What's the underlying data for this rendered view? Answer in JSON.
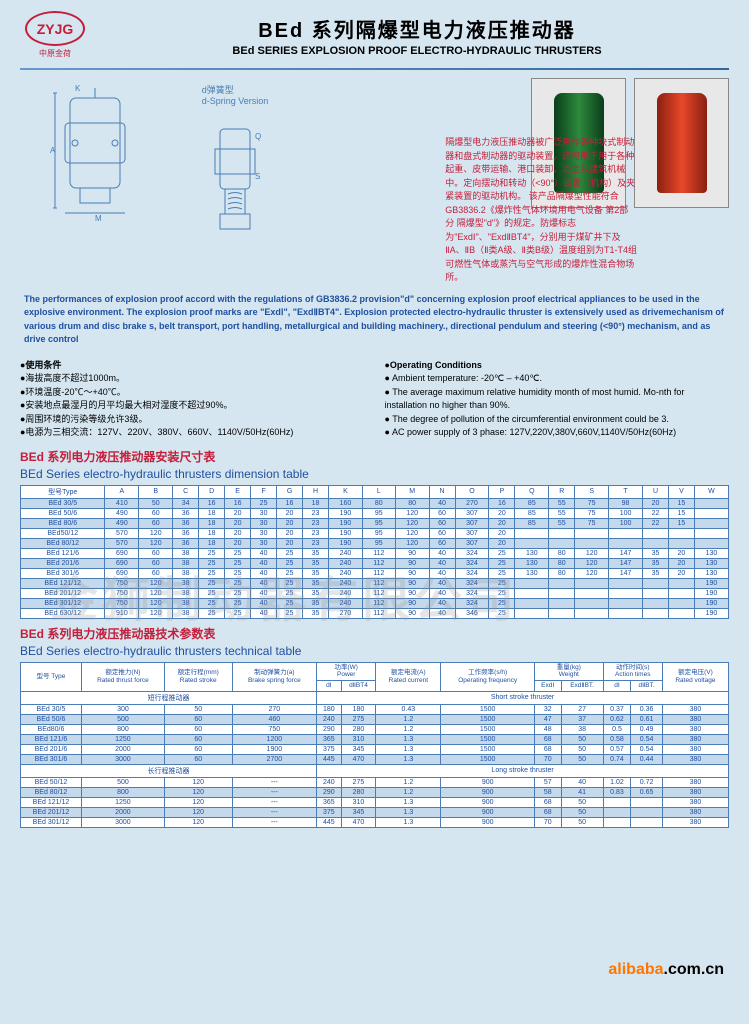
{
  "logo": {
    "text": "ZYJG",
    "sub": "中原金荷"
  },
  "title": {
    "cn": "BEd 系列隔爆型电力液压推动器",
    "en": "BEd SERIES EXPLOSION PROOF ELECTRO-HYDRAULIC THRUSTERS"
  },
  "diagram_label": {
    "cn": "d弹簧型",
    "en": "d-Spring Version"
  },
  "cn_description": "隔爆型电力液压推动器被广泛用作各种块式制动器和盘式制动器的驱动装置。还可用于用于各种起重、皮带运输、港口装卸、冶金及建筑机械中。定向摆动和转动（<90°）装置（机构）及夹紧装置的驱动机构。\n该产品隔爆型性能符合 GB3836.2《爆炸性气体环境用电气设备 第2部分 隔爆型\"d\"》的规定。防爆标志为\"ExdⅠ\"、\"ExdⅡBT4\"，分别用于煤矿井下及ⅡA、ⅡB（Ⅱ类A级、Ⅱ类B级）温度组别为T1-T4组可燃性气体或蒸汽与空气形成的爆炸性混合物场所。",
  "en_description": "The performances of explosion proof accord with the regulations of GB3836.2 provision\"d\" concerning explosion proof electrical appliances to be used in the explosive environment. The explosion proof marks are \"ExdⅠ\", \"ExdⅡBT4\". Explosion protected electro-hydraulic thruster is extensively used as drivemechanism of various drum and disc brake s, belt transport, port handling, metallurgical and building machinery., directional pendulum and steering (<90°) mechanism, and as drive control",
  "conditions_cn": {
    "head": "●使用条件",
    "lines": [
      "●海拔高度不超过1000m。",
      "●环境温度-20℃～+40℃。",
      "●安装地点最湿月的月平均最大相对湿度不超过90%。",
      "●周围环境的污染等级允许3级。",
      "●电源为三相交流：127V、220V、380V、660V、1140V/50Hz(60Hz)"
    ]
  },
  "conditions_en": {
    "head": "●Operating Conditions",
    "lines": [
      "● Ambient temperature: -20℃ – +40℃.",
      "● The average maximum relative humidity month of most humid. Mo-nth for installation no higher than 90%.",
      "● The degree of pollution of the circumferential environment could be 3.",
      "● AC power supply of 3 phase: 127V,220V,380V,660V,1140V/50Hz(60Hz)"
    ]
  },
  "dim_table": {
    "title_cn": "BEd 系列电力液压推动器安装尺寸表",
    "title_en": "BEd Series electro-hydraulic thrusters dimension table",
    "headers": [
      "型号Type",
      "A",
      "B",
      "C",
      "D",
      "E",
      "F",
      "G",
      "H",
      "K",
      "L",
      "M",
      "N",
      "O",
      "P",
      "Q",
      "R",
      "S",
      "T",
      "U",
      "V",
      "W"
    ],
    "rows": [
      [
        "BEd 30/5",
        "410",
        "50",
        "34",
        "16",
        "16",
        "25",
        "16",
        "18",
        "160",
        "80",
        "80",
        "40",
        "270",
        "16",
        "85",
        "55",
        "75",
        "98",
        "20",
        "15",
        ""
      ],
      [
        "BEd 50/6",
        "490",
        "60",
        "36",
        "18",
        "20",
        "30",
        "20",
        "23",
        "190",
        "95",
        "120",
        "60",
        "307",
        "20",
        "85",
        "55",
        "75",
        "100",
        "22",
        "15",
        ""
      ],
      [
        "BEd 80/6",
        "490",
        "60",
        "36",
        "18",
        "20",
        "30",
        "20",
        "23",
        "190",
        "95",
        "120",
        "60",
        "307",
        "20",
        "85",
        "55",
        "75",
        "100",
        "22",
        "15",
        ""
      ],
      [
        "BEd50/12",
        "570",
        "120",
        "36",
        "18",
        "20",
        "30",
        "20",
        "23",
        "190",
        "95",
        "120",
        "60",
        "307",
        "20",
        "",
        "",
        "",
        "",
        "",
        "",
        ""
      ],
      [
        "BEd 80/12",
        "570",
        "120",
        "36",
        "18",
        "20",
        "30",
        "20",
        "23",
        "190",
        "95",
        "120",
        "60",
        "307",
        "20",
        "",
        "",
        "",
        "",
        "",
        "",
        ""
      ],
      [
        "BEd 121/6",
        "690",
        "60",
        "38",
        "25",
        "25",
        "40",
        "25",
        "35",
        "240",
        "112",
        "90",
        "40",
        "324",
        "25",
        "130",
        "80",
        "120",
        "147",
        "35",
        "20",
        "130"
      ],
      [
        "BEd 201/6",
        "690",
        "60",
        "38",
        "25",
        "25",
        "40",
        "25",
        "35",
        "240",
        "112",
        "90",
        "40",
        "324",
        "25",
        "130",
        "80",
        "120",
        "147",
        "35",
        "20",
        "130"
      ],
      [
        "BEd 301/6",
        "690",
        "60",
        "38",
        "25",
        "25",
        "40",
        "25",
        "35",
        "240",
        "112",
        "90",
        "40",
        "324",
        "25",
        "130",
        "80",
        "120",
        "147",
        "35",
        "20",
        "130"
      ],
      [
        "BEd 121/12",
        "750",
        "120",
        "38",
        "25",
        "25",
        "40",
        "25",
        "35",
        "240",
        "112",
        "90",
        "40",
        "324",
        "25",
        "",
        "",
        "",
        "",
        "",
        "",
        "190"
      ],
      [
        "BEd 201/12",
        "750",
        "120",
        "38",
        "25",
        "25",
        "40",
        "25",
        "35",
        "240",
        "112",
        "90",
        "40",
        "324",
        "25",
        "",
        "",
        "",
        "",
        "",
        "",
        "190"
      ],
      [
        "BEd 301/12",
        "750",
        "120",
        "38",
        "25",
        "25",
        "40",
        "25",
        "35",
        "240",
        "112",
        "90",
        "40",
        "324",
        "25",
        "",
        "",
        "",
        "",
        "",
        "",
        "190"
      ],
      [
        "BEd 630/12",
        "910",
        "120",
        "38",
        "25",
        "25",
        "40",
        "25",
        "35",
        "270",
        "112",
        "90",
        "40",
        "346",
        "25",
        "",
        "",
        "",
        "",
        "",
        "",
        "190"
      ]
    ]
  },
  "tech_table": {
    "title_cn": "BEd 系列电力液压推动器技术参数表",
    "title_en": "BEd Series electro-hydraulic thrusters technical table",
    "headers_top": [
      "型号 Type",
      "额定推力(N)\nRated thrust force",
      "额定行程(mm)\nRated stroke",
      "制动弹簧力(a)\nBrake spring force",
      "功率(W)\nPower",
      "额定电流(A)\nRated current",
      "工作频率(s/h)\nOperating frequency",
      "重量(kg)\nWeight",
      "动作时间(s)\nAction times",
      "额定电压(V)\nRated voltage"
    ],
    "headers_sub": [
      "",
      "",
      "",
      "",
      "dⅠ",
      "dⅡBT4",
      "",
      "",
      "ExdⅠ",
      "ExdⅡBT.",
      "dⅠ",
      "dⅡBT.",
      ""
    ],
    "section1": "短行程推动器   Short stroke thruster",
    "rows1": [
      [
        "BEd 30/5",
        "300",
        "50",
        "270",
        "180",
        "180",
        "0.43",
        "1500",
        "32",
        "27",
        "0.37",
        "0.36",
        "380"
      ],
      [
        "BEd 50/6",
        "500",
        "60",
        "460",
        "240",
        "275",
        "1.2",
        "1500",
        "47",
        "37",
        "0.62",
        "0.61",
        "380"
      ],
      [
        "BEd80/6",
        "800",
        "60",
        "750",
        "290",
        "280",
        "1.2",
        "1500",
        "48",
        "38",
        "0.5",
        "0.49",
        "380"
      ],
      [
        "BEd 121/6",
        "1250",
        "60",
        "1200",
        "365",
        "310",
        "1.3",
        "1500",
        "68",
        "50",
        "0.58",
        "0.54",
        "380"
      ],
      [
        "BEd 201/6",
        "2000",
        "60",
        "1900",
        "375",
        "345",
        "1.3",
        "1500",
        "68",
        "50",
        "0.57",
        "0.54",
        "380"
      ],
      [
        "BEd 301/6",
        "3000",
        "60",
        "2700",
        "445",
        "470",
        "1.3",
        "1500",
        "70",
        "50",
        "0.74",
        "0.44",
        "380"
      ]
    ],
    "section2": "长行程推动器   Long stroke thruster",
    "rows2": [
      [
        "BEd 50/12",
        "500",
        "120",
        "---",
        "240",
        "275",
        "1.2",
        "900",
        "57",
        "40",
        "1.02",
        "0.72",
        "380"
      ],
      [
        "BEd 80/12",
        "800",
        "120",
        "---",
        "290",
        "280",
        "1.2",
        "900",
        "58",
        "41",
        "0.83",
        "0.65",
        "380"
      ],
      [
        "BEd 121/12",
        "1250",
        "120",
        "---",
        "365",
        "310",
        "1.3",
        "900",
        "68",
        "50",
        "",
        "",
        "380"
      ],
      [
        "BEd 201/12",
        "2000",
        "120",
        "---",
        "375",
        "345",
        "1.3",
        "900",
        "68",
        "50",
        "",
        "",
        "380"
      ],
      [
        "BEd 301/12",
        "3000",
        "120",
        "---",
        "445",
        "470",
        "1.3",
        "900",
        "70",
        "50",
        "",
        "",
        "380"
      ]
    ]
  },
  "watermark": "金狮制动器有限公司",
  "footer": {
    "text": "alibaba.com.cn"
  }
}
